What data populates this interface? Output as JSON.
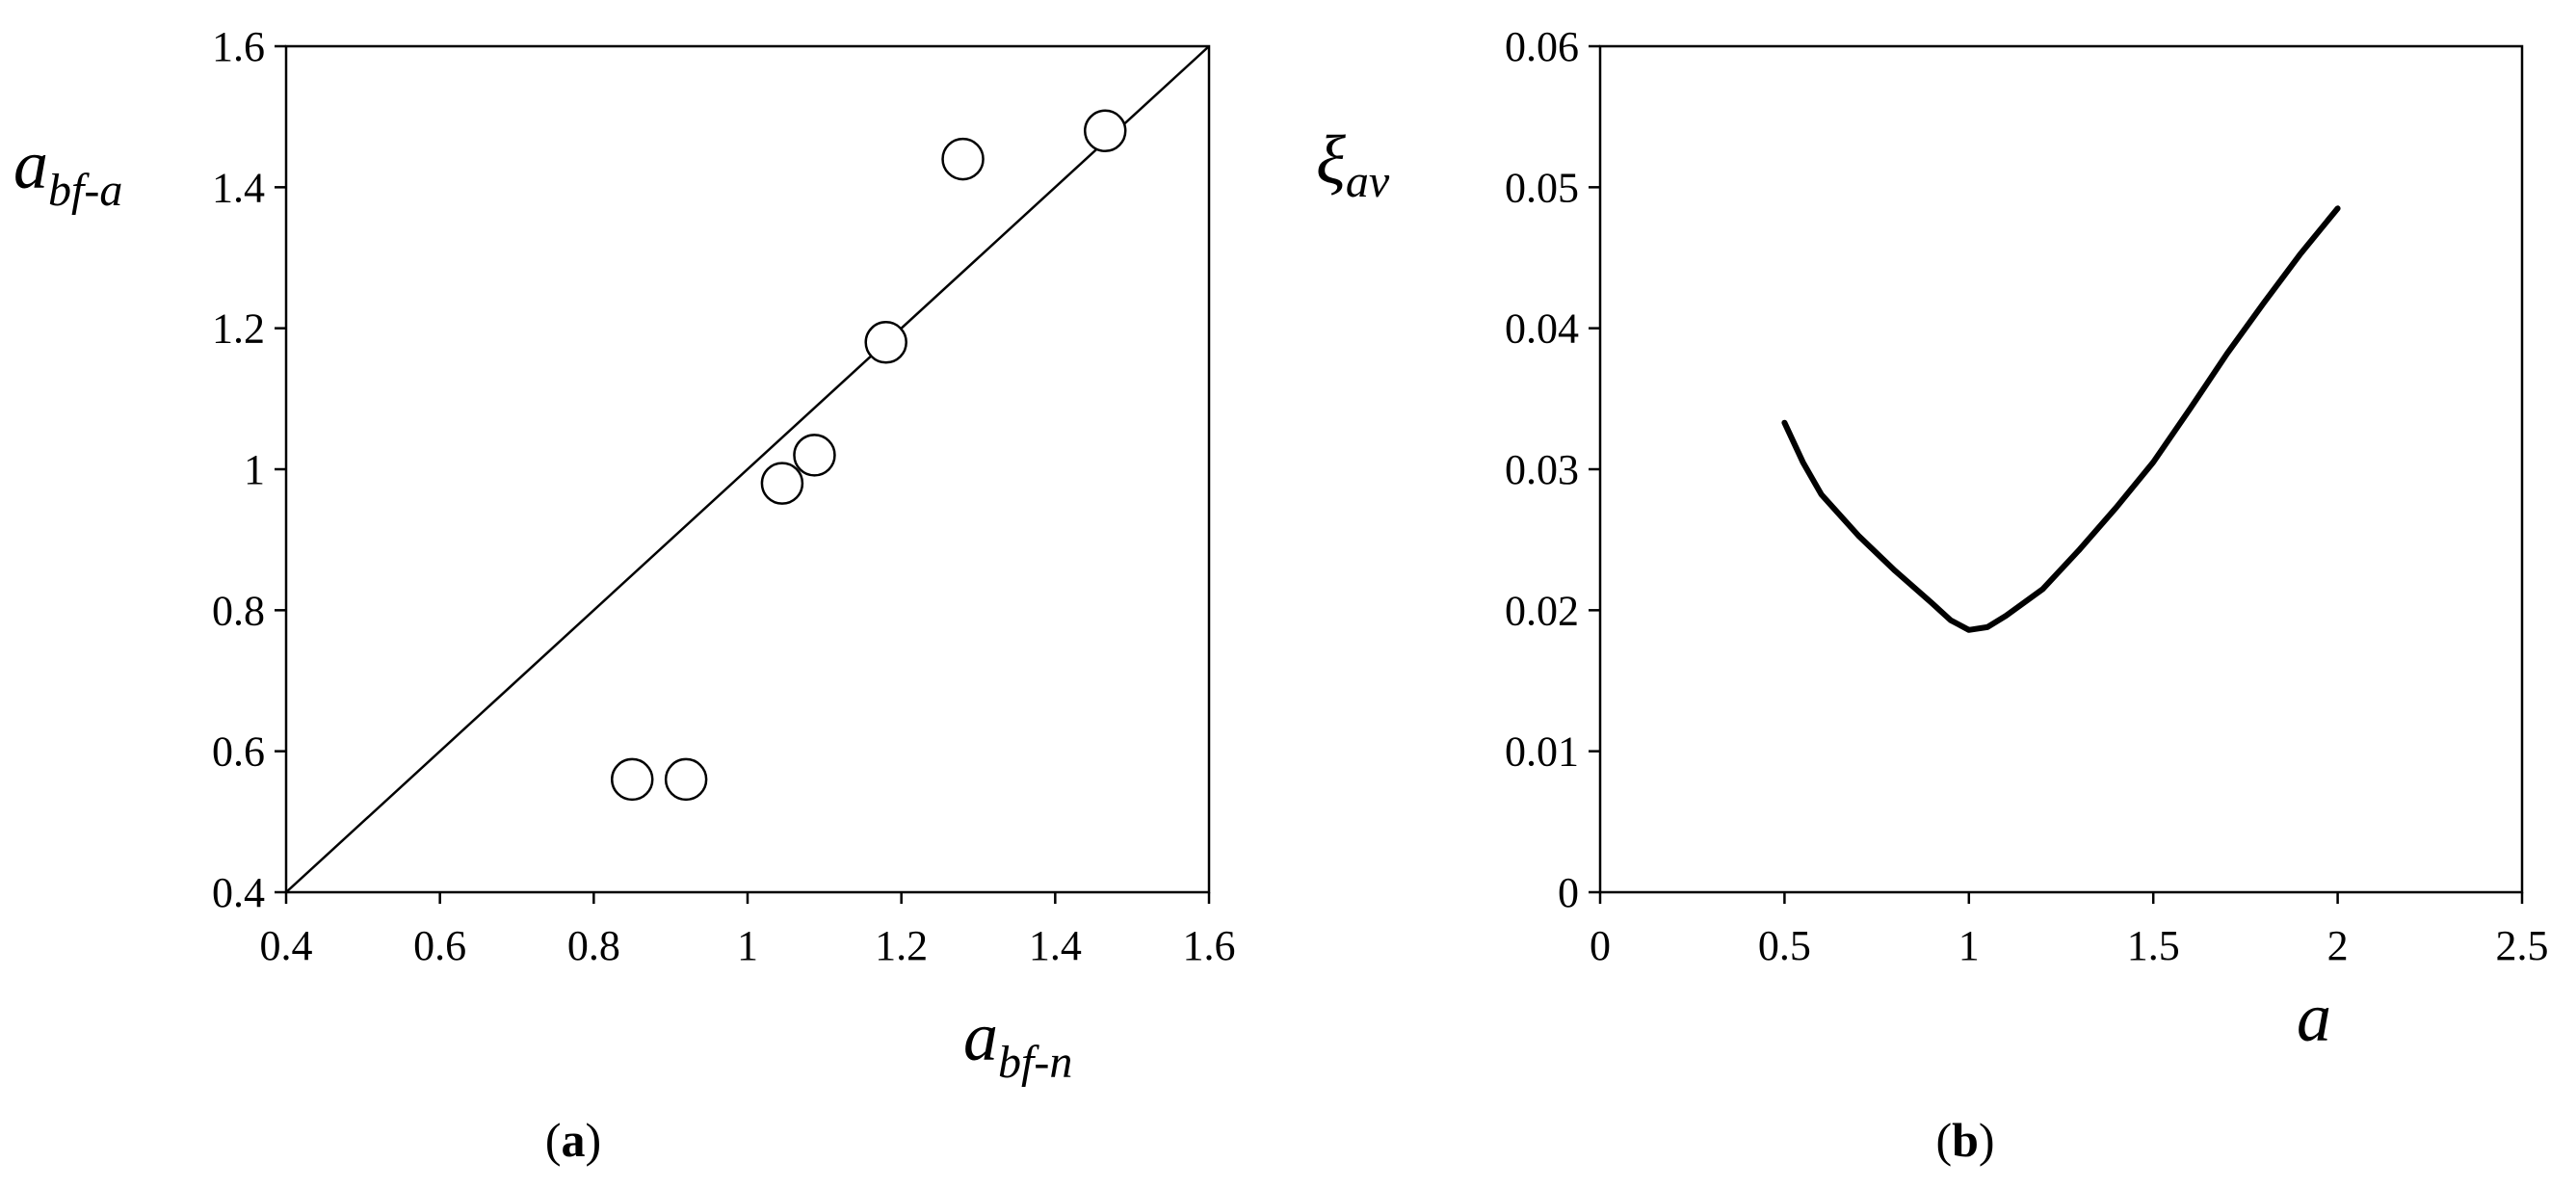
{
  "chart_data": [
    {
      "type": "scatter",
      "panel_label": "(a)",
      "panel_label_parts": {
        "open": "(",
        "letter": "a",
        "close": ")"
      },
      "xlabel": {
        "base": "a",
        "sub": "bf-n"
      },
      "ylabel": {
        "base": "a",
        "sub": "bf-a"
      },
      "xlim": [
        0.4,
        1.6
      ],
      "ylim": [
        0.4,
        1.6
      ],
      "xticks": [
        "0.4",
        "0.6",
        "0.8",
        "1",
        "1.2",
        "1.4",
        "1.6"
      ],
      "yticks": [
        "0.4",
        "0.6",
        "0.8",
        "1",
        "1.2",
        "1.4",
        "1.6"
      ],
      "grid": false,
      "reference_line": {
        "from": [
          0.4,
          0.4
        ],
        "to": [
          1.6,
          1.6
        ]
      },
      "points": [
        {
          "x": 0.85,
          "y": 0.56
        },
        {
          "x": 0.92,
          "y": 0.56
        },
        {
          "x": 1.045,
          "y": 0.98
        },
        {
          "x": 1.087,
          "y": 1.02
        },
        {
          "x": 1.18,
          "y": 1.18
        },
        {
          "x": 1.28,
          "y": 1.44
        },
        {
          "x": 1.465,
          "y": 1.48
        }
      ]
    },
    {
      "type": "line",
      "panel_label": "(b)",
      "panel_label_parts": {
        "open": "(",
        "letter": "b",
        "close": ")"
      },
      "xlabel": {
        "base": "a",
        "sub": ""
      },
      "ylabel": {
        "base": "ξ",
        "sub": "av"
      },
      "xlim": [
        0,
        2.5
      ],
      "ylim": [
        0,
        0.06
      ],
      "xticks": [
        "0",
        "0.5",
        "1",
        "1.5",
        "2",
        "2.5"
      ],
      "yticks": [
        "0",
        "0.01",
        "0.02",
        "0.03",
        "0.04",
        "0.05",
        "0.06"
      ],
      "grid": false,
      "series": [
        {
          "x": [
            0.5,
            0.55,
            0.6,
            0.7,
            0.8,
            0.9,
            0.95,
            1.0,
            1.05,
            1.1,
            1.2,
            1.3,
            1.4,
            1.5,
            1.6,
            1.7,
            1.8,
            1.9,
            2.0
          ],
          "y": [
            0.0333,
            0.0305,
            0.0282,
            0.0253,
            0.0228,
            0.0205,
            0.0193,
            0.0186,
            0.0188,
            0.0196,
            0.0215,
            0.0243,
            0.0273,
            0.0305,
            0.0343,
            0.0382,
            0.0418,
            0.0453,
            0.0485
          ]
        }
      ]
    }
  ]
}
